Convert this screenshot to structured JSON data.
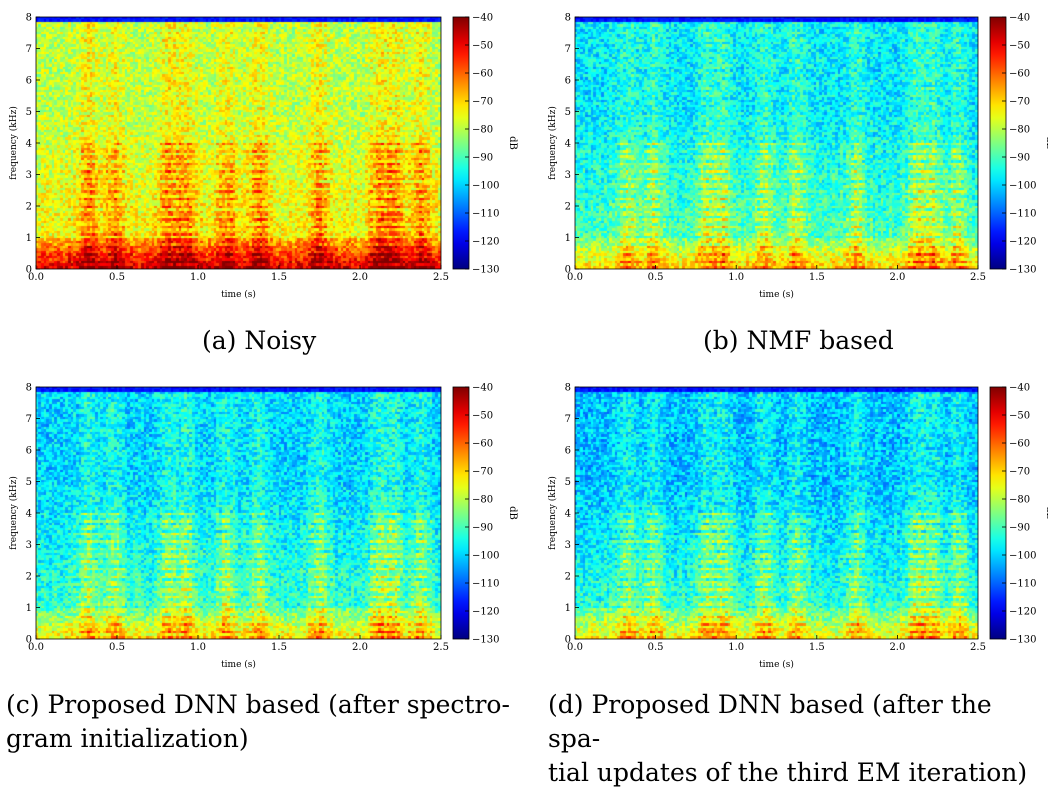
{
  "chart_data": [
    {
      "type": "heatmap",
      "caption": "(a) Noisy",
      "xlabel": "time (s)",
      "ylabel": "frequency (kHz)",
      "colorbar_label": "dB",
      "xlim": [
        0.0,
        2.5
      ],
      "ylim": [
        0,
        8
      ],
      "x_ticks": [
        "0.0",
        "0.5",
        "1.0",
        "1.5",
        "2.0",
        "2.5"
      ],
      "y_ticks": [
        "0",
        "1",
        "2",
        "3",
        "4",
        "5",
        "6",
        "7",
        "8"
      ],
      "colorbar_range": [
        -130,
        -40
      ],
      "colorbar_ticks": [
        "−40",
        "−50",
        "−60",
        "−70",
        "−80",
        "−90",
        "−100",
        "−110",
        "−120",
        "−130"
      ],
      "colormap": "jet",
      "mean_level_db": -72,
      "high_band_level_db": -80
    },
    {
      "type": "heatmap",
      "caption": "(b) NMF based",
      "xlabel": "time (s)",
      "ylabel": "frequency (kHz)",
      "colorbar_label": "dB",
      "xlim": [
        0.0,
        2.5
      ],
      "ylim": [
        0,
        8
      ],
      "x_ticks": [
        "0.0",
        "0.5",
        "1.0",
        "1.5",
        "2.0",
        "2.5"
      ],
      "y_ticks": [
        "0",
        "1",
        "2",
        "3",
        "4",
        "5",
        "6",
        "7",
        "8"
      ],
      "colorbar_range": [
        -130,
        -40
      ],
      "colorbar_ticks": [
        "−40",
        "−50",
        "−60",
        "−70",
        "−80",
        "−90",
        "−100",
        "−110",
        "−120",
        "−130"
      ],
      "colormap": "jet",
      "mean_level_db": -88,
      "high_band_level_db": -98
    },
    {
      "type": "heatmap",
      "caption": "(c) Proposed DNN based (after spectro-gram initialization)",
      "caption_lines": [
        "(c) Proposed DNN based (after spectro-",
        "gram initialization)"
      ],
      "xlabel": "time (s)",
      "ylabel": "frequency (kHz)",
      "colorbar_label": "dB",
      "xlim": [
        0.0,
        2.5
      ],
      "ylim": [
        0,
        8
      ],
      "x_ticks": [
        "0.0",
        "0.5",
        "1.0",
        "1.5",
        "2.0",
        "2.5"
      ],
      "y_ticks": [
        "0",
        "1",
        "2",
        "3",
        "4",
        "5",
        "6",
        "7",
        "8"
      ],
      "colorbar_range": [
        -130,
        -40
      ],
      "colorbar_ticks": [
        "−40",
        "−50",
        "−60",
        "−70",
        "−80",
        "−90",
        "−100",
        "−110",
        "−120",
        "−130"
      ],
      "colormap": "jet",
      "mean_level_db": -90,
      "high_band_level_db": -100
    },
    {
      "type": "heatmap",
      "caption": "(d) Proposed DNN based (after the spa-tial updates of the third EM iteration)",
      "caption_lines": [
        "(d) Proposed DNN based (after the spa-",
        "tial updates of the third EM iteration)"
      ],
      "xlabel": "time (s)",
      "ylabel": "frequency (kHz)",
      "colorbar_label": "dB",
      "xlim": [
        0.0,
        2.5
      ],
      "ylim": [
        0,
        8
      ],
      "x_ticks": [
        "0.0",
        "0.5",
        "1.0",
        "1.5",
        "2.0",
        "2.5"
      ],
      "y_ticks": [
        "0",
        "1",
        "2",
        "3",
        "4",
        "5",
        "6",
        "7",
        "8"
      ],
      "colorbar_range": [
        -130,
        -40
      ],
      "colorbar_ticks": [
        "−40",
        "−50",
        "−60",
        "−70",
        "−80",
        "−90",
        "−100",
        "−110",
        "−120",
        "−130"
      ],
      "colormap": "jet",
      "mean_level_db": -91,
      "high_band_level_db": -102
    }
  ]
}
